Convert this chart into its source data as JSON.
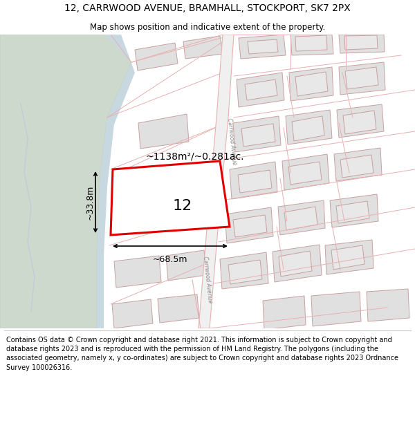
{
  "title": "12, CARRWOOD AVENUE, BRAMHALL, STOCKPORT, SK7 2PX",
  "subtitle": "Map shows position and indicative extent of the property.",
  "footer": "Contains OS data © Crown copyright and database right 2021. This information is subject to Crown copyright and database rights 2023 and is reproduced with the permission of HM Land Registry. The polygons (including the associated geometry, namely x, y co-ordinates) are subject to Crown copyright and database rights 2023 Ordnance Survey 100026316.",
  "map_bg": "#f8f8f8",
  "green_color": "#cdd9cc",
  "green_edge": "#b5c8b5",
  "blue_strip": "#c8d8e0",
  "road_fill": "#f0f0f0",
  "road_edge": "#e8b0b0",
  "road_edge_lw": 0.8,
  "bld_fill": "#e0e0e0",
  "bld_edge": "#c8a0a0",
  "bld_lw": 0.7,
  "prop_fill": "#ffffff",
  "prop_edge": "#e8b0b0",
  "prop_lw": 0.6,
  "highlight_fill": "#ffffff",
  "highlight_edge": "#e00000",
  "highlight_lw": 2.2,
  "area_label": "~1138m²/~0.281ac.",
  "house_number": "12",
  "dim_w": "~68.5m",
  "dim_h": "~33.8m",
  "road_label": "Carrwood Avenue",
  "road_label2": "Carrwood Avenue",
  "title_fontsize": 10,
  "subtitle_fontsize": 8.5,
  "footer_fontsize": 7.0
}
